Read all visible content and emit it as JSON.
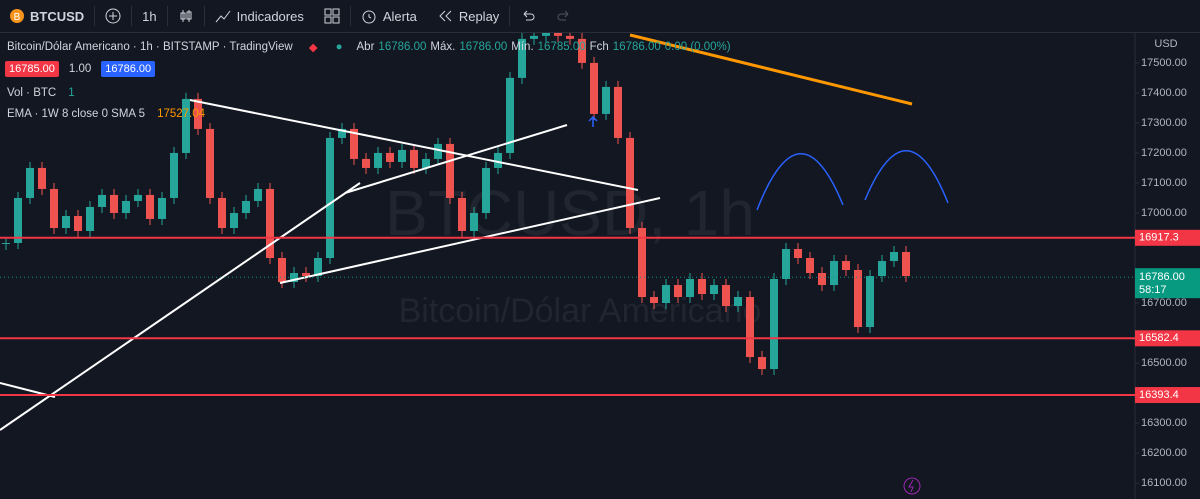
{
  "toolbar": {
    "symbol": "BTCUSD",
    "interval": "1h",
    "indicators": "Indicadores",
    "alert": "Alerta",
    "replay": "Replay"
  },
  "legend": {
    "title": "Bitcoin/Dólar Americano · 1h · BITSTAMP · TradingView",
    "open_label": "Abr",
    "open": "16786.00",
    "high_label": "Máx.",
    "high": "16786.00",
    "low_label": "Mín.",
    "low": "16785.00",
    "close_label": "Fch",
    "close": "16786.00",
    "change": "0.00 (0.00%)"
  },
  "order": {
    "sell": "16785.00",
    "qty": "1.00",
    "buy": "16786.00"
  },
  "volume": {
    "label": "Vol · BTC",
    "value": "1"
  },
  "ema": {
    "label": "EMA · 1W 8 close 0 SMA 5",
    "value": "17527.04"
  },
  "watermark": {
    "symbol": "BTCUSD, 1h",
    "name": "Bitcoin/Dólar Americano"
  },
  "chart": {
    "currency": "USD",
    "ylim": [
      16047,
      17603
    ],
    "yticks": [
      {
        "value": 17500,
        "label": "17500.00"
      },
      {
        "value": 17400,
        "label": "17400.00"
      },
      {
        "value": 17300,
        "label": "17300.00"
      },
      {
        "value": 17200,
        "label": "17200.00"
      },
      {
        "value": 17100,
        "label": "17100.00"
      },
      {
        "value": 17000,
        "label": "17000.00"
      },
      {
        "value": 16700,
        "label": "16700.00"
      },
      {
        "value": 16500,
        "label": "16500.00"
      },
      {
        "value": 16300,
        "label": "16300.00"
      },
      {
        "value": 16200,
        "label": "16200.00"
      },
      {
        "value": 16100,
        "label": "16100.00"
      }
    ],
    "levels": [
      16917.3,
      16582.4,
      16393.4
    ],
    "last": {
      "value": 16786,
      "label": "16786.00",
      "countdown": "58:17"
    },
    "closes": [
      16900,
      17050,
      17150,
      17080,
      16950,
      16990,
      16940,
      17020,
      17060,
      17000,
      17040,
      17060,
      16980,
      17050,
      17200,
      17380,
      17280,
      17050,
      16950,
      17000,
      17040,
      17080,
      16850,
      16770,
      16800,
      16790,
      16850,
      17250,
      17280,
      17180,
      17150,
      17200,
      17170,
      17210,
      17150,
      17180,
      17230,
      17050,
      16940,
      17000,
      17150,
      17200,
      17450,
      17580,
      17590,
      17600,
      17590,
      17580,
      17500,
      17330,
      17420,
      17250,
      16950,
      16720,
      16700,
      16760,
      16720,
      16780,
      16730,
      16760,
      16690,
      16720,
      16520,
      16480,
      16780,
      16880,
      16850,
      16800,
      16760,
      16840,
      16810,
      16620,
      16790,
      16840,
      16870,
      16790
    ]
  }
}
